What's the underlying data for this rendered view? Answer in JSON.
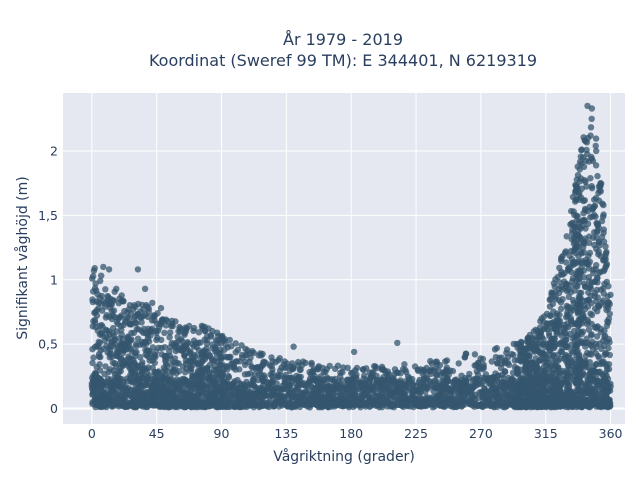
{
  "chart_data": {
    "type": "scatter",
    "title": "År 1979 - 2019",
    "subtitle": "Koordinat (Sweref 99 TM): E 344401, N 6219319",
    "xlabel": "Vågriktning (grader)",
    "ylabel": "Signifikant våghöjd (m)",
    "xlim": [
      -20,
      370
    ],
    "ylim": [
      -0.12,
      2.45
    ],
    "x_ticks": [
      0,
      45,
      90,
      135,
      180,
      225,
      270,
      315,
      360
    ],
    "x_tick_labels": [
      "0",
      "45",
      "90",
      "135",
      "180",
      "225",
      "270",
      "315",
      "360"
    ],
    "y_ticks": [
      0,
      0.5,
      1,
      1.5,
      2
    ],
    "y_tick_labels": [
      "0",
      "0,5",
      "1",
      "1,5",
      "2"
    ],
    "grid": true,
    "marker_color": "#34566d",
    "plot_background": "#e5e8f0",
    "density_envelope": {
      "description_x": [
        0,
        10,
        20,
        30,
        40,
        50,
        60,
        70,
        80,
        90,
        100,
        110,
        120,
        135,
        150,
        165,
        180,
        195,
        210,
        225,
        240,
        255,
        270,
        285,
        300,
        310,
        315,
        320,
        325,
        330,
        335,
        340,
        345,
        350,
        355,
        360
      ],
      "max_y": [
        1.1,
        1.0,
        0.9,
        0.82,
        0.8,
        0.72,
        0.68,
        0.66,
        0.64,
        0.6,
        0.52,
        0.45,
        0.42,
        0.38,
        0.36,
        0.34,
        0.33,
        0.33,
        0.34,
        0.36,
        0.38,
        0.42,
        0.45,
        0.48,
        0.55,
        0.65,
        0.78,
        0.95,
        1.15,
        1.4,
        1.75,
        2.05,
        2.36,
        2.1,
        1.6,
        0.9
      ]
    },
    "outliers": [
      {
        "x": 2,
        "y": 1.09
      },
      {
        "x": 8,
        "y": 1.1
      },
      {
        "x": 12,
        "y": 1.08
      },
      {
        "x": 32,
        "y": 1.08
      },
      {
        "x": 37,
        "y": 0.93
      },
      {
        "x": 42,
        "y": 0.82
      },
      {
        "x": 48,
        "y": 0.78
      },
      {
        "x": 182,
        "y": 0.44
      },
      {
        "x": 212,
        "y": 0.51
      },
      {
        "x": 140,
        "y": 0.48
      },
      {
        "x": 297,
        "y": 0.45
      },
      {
        "x": 329,
        "y": 1.22
      },
      {
        "x": 336,
        "y": 1.62
      },
      {
        "x": 341,
        "y": 1.95
      },
      {
        "x": 344,
        "y": 2.35
      },
      {
        "x": 347,
        "y": 2.33
      },
      {
        "x": 350,
        "y": 2.0
      },
      {
        "x": 353,
        "y": 1.75
      },
      {
        "x": 355,
        "y": 1.58
      }
    ]
  }
}
